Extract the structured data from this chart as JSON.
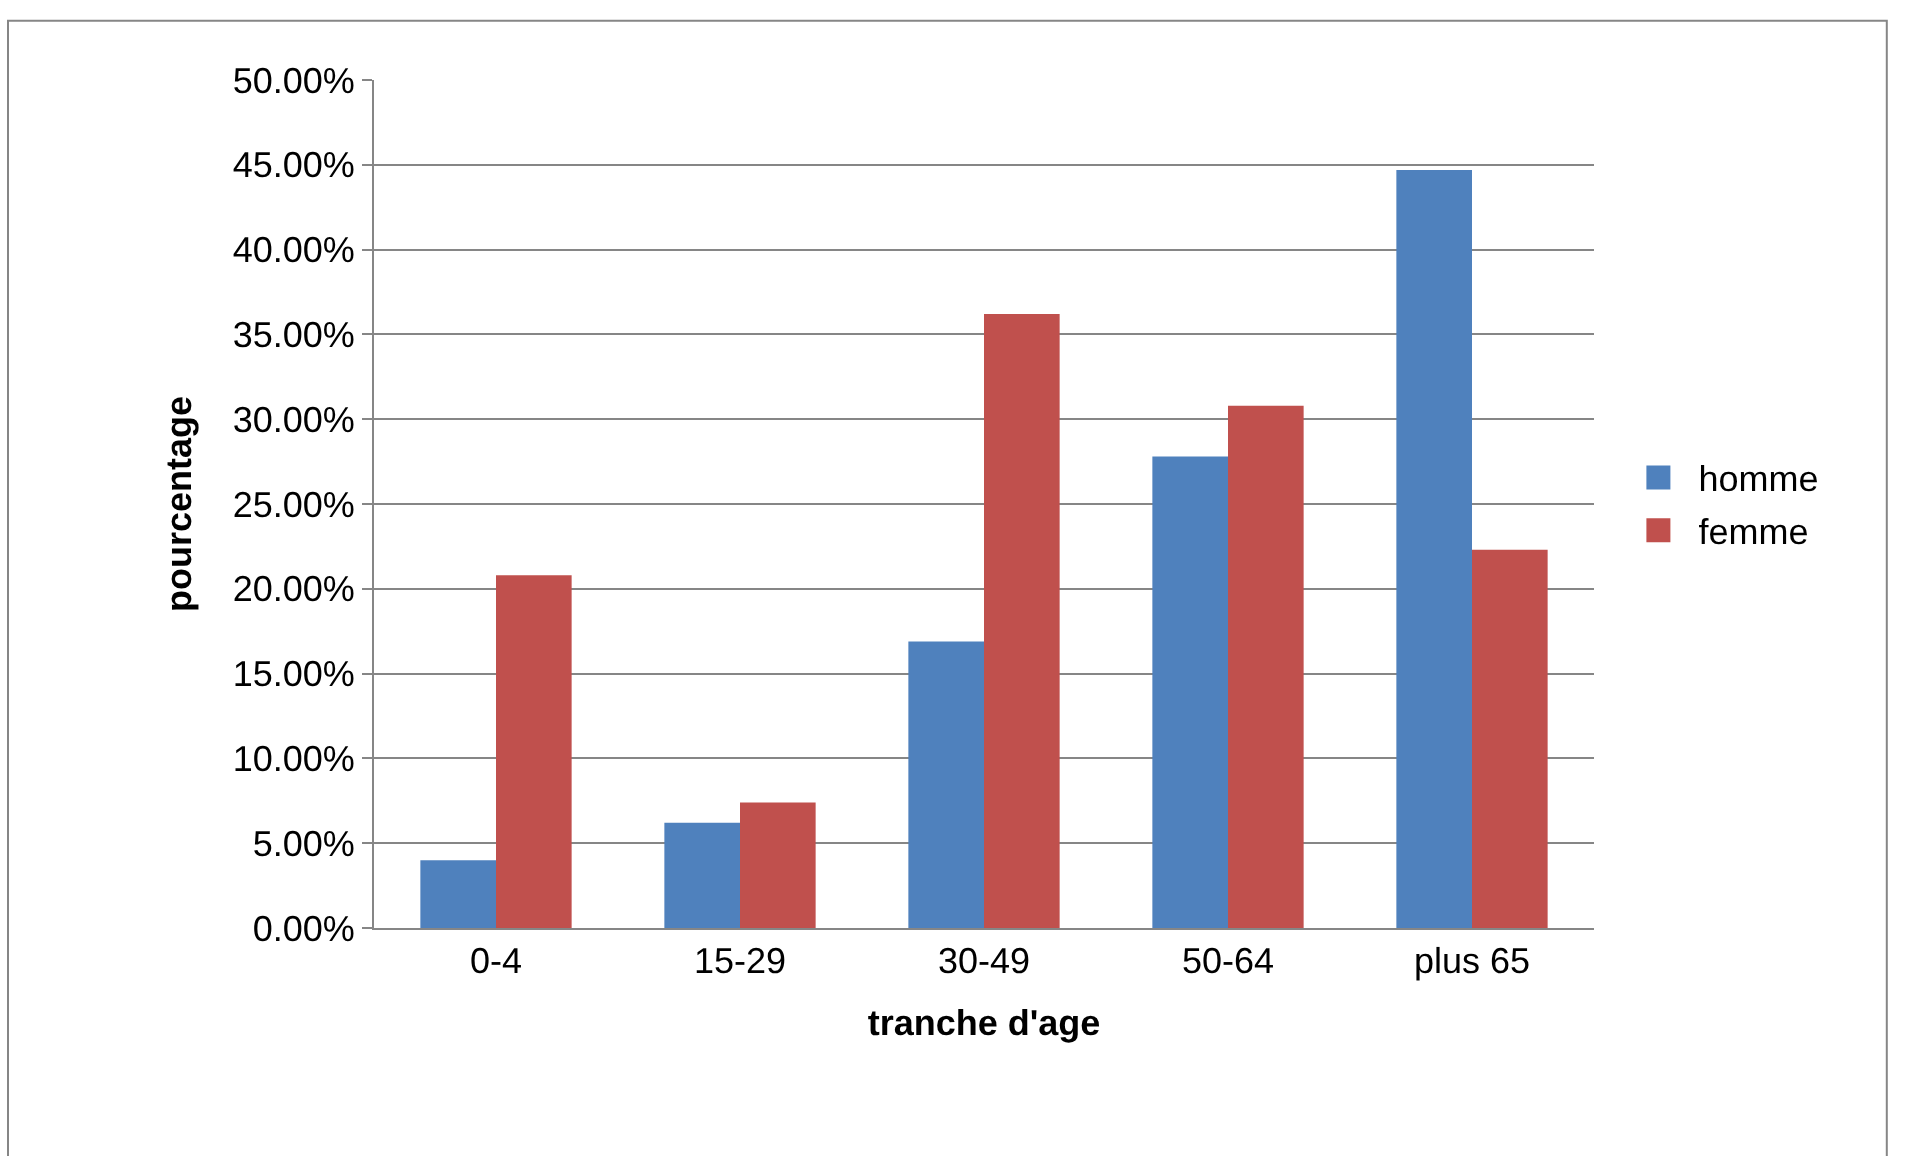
{
  "chart_data": {
    "type": "bar",
    "xlabel": "tranche d'age",
    "ylabel": "pourcentage",
    "categories": [
      "0-4",
      "15-29",
      "30-49",
      "50-64",
      "plus 65"
    ],
    "series": [
      {
        "name": "homme",
        "color": "#4f81bd",
        "values": [
          4.0,
          6.2,
          16.9,
          27.8,
          44.7
        ]
      },
      {
        "name": "femme",
        "color": "#c0504d",
        "values": [
          20.8,
          7.4,
          36.2,
          30.8,
          22.3
        ]
      }
    ],
    "ylim": [
      0,
      50
    ],
    "yticks": [
      {
        "value": 0,
        "label": "0.00%"
      },
      {
        "value": 5,
        "label": "5.00%"
      },
      {
        "value": 10,
        "label": "10.00%"
      },
      {
        "value": 15,
        "label": "15.00%"
      },
      {
        "value": 20,
        "label": "20.00%"
      },
      {
        "value": 25,
        "label": "25.00%"
      },
      {
        "value": 30,
        "label": "30.00%"
      },
      {
        "value": 35,
        "label": "35.00%"
      },
      {
        "value": 40,
        "label": "40.00%"
      },
      {
        "value": 45,
        "label": "45.00%"
      },
      {
        "value": 50,
        "label": "50.00%"
      }
    ],
    "grid": "y",
    "legend": "right"
  }
}
